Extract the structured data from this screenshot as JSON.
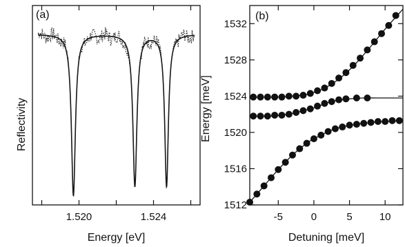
{
  "chart_data": [
    {
      "panel": "(a)",
      "type": "line",
      "xlabel": "Energy [eV]",
      "ylabel": "Reflectivity",
      "xlim": [
        1.5175,
        1.5265
      ],
      "ylim": [
        0,
        1.05
      ],
      "x_ticks": [
        1.518,
        1.52,
        1.522,
        1.524,
        1.526
      ],
      "x_tick_labels": [
        {
          "value": 1.52,
          "label": "1.520"
        },
        {
          "value": 1.524,
          "label": "1.524"
        }
      ],
      "series": [
        {
          "style": "solid",
          "baseline": 0.9,
          "dips": [
            {
              "center": 1.5197,
              "min": 0.05,
              "width": 0.00013
            },
            {
              "center": 1.523,
              "min": 0.1,
              "width": 0.00013
            },
            {
              "center": 1.5247,
              "min": 0.1,
              "width": 0.00012
            }
          ]
        },
        {
          "style": "dotted",
          "description_free": true,
          "baseline": 0.9,
          "noise_amplitude": 0.035
        }
      ]
    },
    {
      "panel": "(b)",
      "type": "scatter",
      "xlabel": "Detuning [meV]",
      "ylabel": "Energy [meV]",
      "xlim": [
        -9,
        12.5
      ],
      "ylim": [
        1512,
        1534
      ],
      "x_ticks": [
        {
          "value": -5,
          "label": "-5"
        },
        {
          "value": 0,
          "label": "0"
        },
        {
          "value": 5,
          "label": "5"
        },
        {
          "value": 10,
          "label": "10"
        }
      ],
      "y_ticks": [
        {
          "value": 1512,
          "label": "1512"
        },
        {
          "value": 1516,
          "label": "1516"
        },
        {
          "value": 1520,
          "label": "1520"
        },
        {
          "value": 1524,
          "label": "1524"
        },
        {
          "value": 1528,
          "label": "1528"
        },
        {
          "value": 1532,
          "label": "1532"
        }
      ],
      "series": [
        {
          "branch": "upper",
          "x": [
            -8.5,
            -7.5,
            -6.5,
            -5.5,
            -4.5,
            -3.5,
            -2.5,
            -1.5,
            -0.5,
            0.5,
            1.5,
            2.5,
            3.5,
            4.5,
            5.5,
            6.5,
            7.5,
            8.5,
            9.5,
            10.5,
            11.5
          ],
          "y": [
            1523.9,
            1523.9,
            1523.9,
            1523.9,
            1523.9,
            1524.0,
            1524.0,
            1524.1,
            1524.3,
            1524.6,
            1524.9,
            1525.4,
            1526.0,
            1526.6,
            1527.4,
            1528.2,
            1529.1,
            1530.0,
            1530.9,
            1531.8,
            1532.9
          ]
        },
        {
          "branch": "middle",
          "x": [
            -8.5,
            -7.5,
            -6.5,
            -5.5,
            -4.5,
            -3.5,
            -2.5,
            -1.5,
            -0.5,
            0.5,
            1.5,
            2.5,
            3.5,
            4.5,
            6.0,
            7.5
          ],
          "y": [
            1521.8,
            1521.8,
            1521.8,
            1521.9,
            1521.9,
            1522.0,
            1522.2,
            1522.4,
            1522.6,
            1522.9,
            1523.2,
            1523.4,
            1523.6,
            1523.7,
            1523.8,
            1523.8
          ]
        },
        {
          "branch": "lower",
          "x": [
            -9.0,
            -8.0,
            -7.0,
            -6.0,
            -5.0,
            -4.0,
            -3.0,
            -2.0,
            -1.0,
            0.0,
            1.0,
            2.0,
            3.0,
            4.0,
            5.0,
            6.0,
            7.0,
            8.0,
            9.0,
            10.0,
            11.0,
            12.0
          ],
          "y": [
            1512.3,
            1513.2,
            1514.1,
            1515.0,
            1515.9,
            1516.7,
            1517.5,
            1518.2,
            1518.8,
            1519.3,
            1519.7,
            1520.1,
            1520.4,
            1520.6,
            1520.8,
            1520.9,
            1521.0,
            1521.1,
            1521.2,
            1521.2,
            1521.3,
            1521.3
          ]
        }
      ],
      "fit_curves": [
        {
          "branch": "upper",
          "x": [
            -9,
            -6,
            -3,
            -1,
            0,
            1,
            2,
            3,
            4,
            5,
            6,
            8,
            10,
            12.5
          ],
          "y": [
            1523.9,
            1523.9,
            1524.0,
            1524.2,
            1524.4,
            1524.7,
            1525.1,
            1525.6,
            1526.2,
            1526.9,
            1527.7,
            1529.5,
            1531.4,
            1533.6
          ]
        },
        {
          "branch": "middle",
          "x": [
            -9,
            -6,
            -3,
            -1,
            0,
            1,
            2,
            3,
            4,
            5,
            7,
            9,
            12.5
          ],
          "y": [
            1521.8,
            1521.8,
            1522.1,
            1522.5,
            1522.7,
            1523.0,
            1523.3,
            1523.5,
            1523.6,
            1523.7,
            1523.8,
            1523.8,
            1523.8
          ]
        },
        {
          "branch": "lower",
          "x": [
            -9,
            -7,
            -5,
            -3,
            -1,
            0,
            1,
            2,
            3,
            4,
            6,
            8,
            10,
            12.5
          ],
          "y": [
            1512.3,
            1514.1,
            1515.9,
            1517.5,
            1518.8,
            1519.3,
            1519.7,
            1520.1,
            1520.4,
            1520.6,
            1520.9,
            1521.1,
            1521.2,
            1521.3
          ]
        }
      ]
    }
  ],
  "panels": {
    "a": {
      "label": "(a)"
    },
    "b": {
      "label": "(b)"
    }
  }
}
